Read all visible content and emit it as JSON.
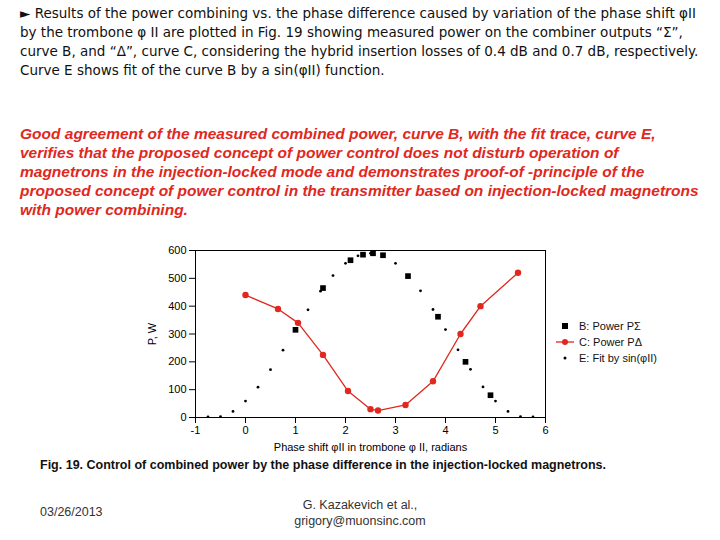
{
  "slide": {
    "text": "► Results of the power combining vs. the phase difference caused by variation of the phase shift φII by the trombone φ II are plotted in Fig. 19 showing measured power on the combiner outputs “Σ”, curve B, and “Δ”, curve C, considering the hybrid insertion losses of 0.4 dB and 0.7 dB, respectively. Curve E shows fit of the curve B by a sin(φII) function.",
    "highlight": "Good agreement of the measured combined power, curve B, with the fit trace, curve E, verifies that the proposed concept of power control does not disturb operation of magnetrons in the injection-locked mode and demonstrates proof-of -principle of the proposed concept of power control in the transmitter based on injection-locked magnetrons with power combining.",
    "caption": "Fig. 19. Control of combined power by the phase difference in the injection-locked magnetrons.",
    "footer": {
      "date": "03/26/2013",
      "author": "G. Kazakevich et al.,",
      "email": "grigory@muonsinc.com"
    }
  },
  "chart_data": {
    "type": "scatter",
    "x_label": "Phase shift φII in trombone φ II, radians",
    "y_label": "P, W",
    "xlim": [
      -1,
      6
    ],
    "xticks": [
      -1,
      0,
      1,
      2,
      3,
      4,
      5,
      6
    ],
    "ylim": [
      0,
      600
    ],
    "yticks": [
      0,
      100,
      200,
      300,
      400,
      500,
      600
    ],
    "grid": false,
    "legend": "center right",
    "series": [
      {
        "name": "B: Power PΣ",
        "color": "#000000",
        "marker": "square",
        "line_style": "none",
        "x": [
          1.0,
          1.55,
          2.1,
          2.35,
          2.55,
          2.75,
          3.25,
          3.85,
          4.4,
          4.9
        ],
        "values": [
          315,
          465,
          565,
          585,
          590,
          583,
          508,
          362,
          200,
          80
        ]
      },
      {
        "name": "C: Power PΔ",
        "color": "#e0281e",
        "marker": "circle",
        "line_style": "solid",
        "x": [
          0,
          0.65,
          1.05,
          1.55,
          2.05,
          2.5,
          2.65,
          3.2,
          3.75,
          4.3,
          4.7,
          5.45
        ],
        "values": [
          440,
          390,
          340,
          225,
          95,
          30,
          25,
          45,
          130,
          300,
          400,
          520
        ]
      },
      {
        "name": "E: Fit by sin(φII)",
        "color": "#000000",
        "marker": "dot",
        "line_style": "none",
        "x": [
          -0.75,
          -0.5,
          -0.25,
          0,
          0.25,
          0.5,
          0.75,
          1,
          1.25,
          1.5,
          1.75,
          2,
          2.25,
          2.5,
          2.75,
          3,
          3.25,
          3.5,
          3.75,
          4,
          4.25,
          4.5,
          4.75,
          5,
          5.25,
          5.5,
          5.75
        ],
        "values": [
          2,
          3,
          22,
          59,
          109,
          172,
          242,
          316,
          387,
          454,
          510,
          554,
          581,
          590,
          585,
          554,
          511,
          455,
          388,
          316,
          243,
          173,
          110,
          59,
          22,
          3,
          2
        ]
      }
    ]
  }
}
